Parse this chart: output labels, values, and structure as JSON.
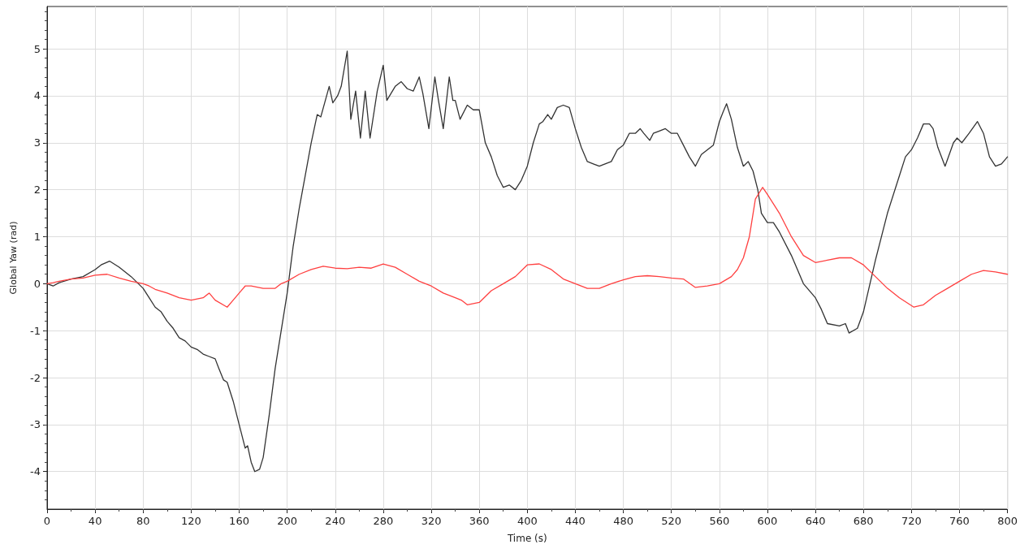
{
  "chart_data": {
    "type": "line",
    "xlabel": "Time (s)",
    "ylabel": "Global Yaw (rad)",
    "xlim": [
      0,
      800
    ],
    "xticks": [
      0,
      40,
      80,
      120,
      160,
      200,
      240,
      280,
      320,
      360,
      400,
      440,
      480,
      520,
      560,
      600,
      640,
      680,
      720,
      760,
      800
    ],
    "ylim": [
      -4.8,
      5.9
    ],
    "yticks": [
      -4,
      -3,
      -2,
      -1,
      0,
      1,
      2,
      3,
      4,
      5
    ],
    "grid": true,
    "marker": "none",
    "line_style": "solid",
    "series": [
      {
        "color": "#333333",
        "x": [
          0,
          5,
          10,
          20,
          30,
          40,
          45,
          52,
          60,
          70,
          80,
          85,
          90,
          95,
          100,
          105,
          110,
          115,
          120,
          125,
          130,
          135,
          140,
          143,
          147,
          150,
          155,
          160,
          165,
          167,
          170,
          173,
          177,
          180,
          185,
          190,
          195,
          200,
          205,
          210,
          215,
          220,
          225,
          228,
          235,
          238,
          242,
          245,
          250,
          253,
          257,
          261,
          265,
          269,
          275,
          280,
          283,
          290,
          295,
          300,
          305,
          310,
          313,
          318,
          323,
          326,
          330,
          335,
          338,
          340,
          344,
          350,
          355,
          360,
          365,
          370,
          375,
          380,
          385,
          390,
          395,
          400,
          405,
          410,
          413,
          417,
          420,
          425,
          430,
          435,
          440,
          445,
          450,
          455,
          460,
          470,
          475,
          480,
          485,
          490,
          494,
          497,
          502,
          505,
          510,
          515,
          520,
          525,
          530,
          535,
          540,
          545,
          550,
          555,
          560,
          563,
          566,
          570,
          575,
          580,
          584,
          588,
          592,
          595,
          600,
          605,
          610,
          620,
          630,
          640,
          645,
          650,
          660,
          665,
          668,
          675,
          680,
          690,
          700,
          710,
          715,
          720,
          725,
          730,
          735,
          738,
          742,
          748,
          755,
          758,
          762,
          768,
          775,
          780,
          785,
          790,
          795,
          800
        ],
        "values": [
          0,
          -0.05,
          0.02,
          0.1,
          0.15,
          0.3,
          0.4,
          0.48,
          0.35,
          0.15,
          -0.1,
          -0.3,
          -0.5,
          -0.6,
          -0.8,
          -0.95,
          -1.15,
          -1.22,
          -1.35,
          -1.4,
          -1.5,
          -1.55,
          -1.6,
          -1.8,
          -2.05,
          -2.1,
          -2.5,
          -3.0,
          -3.5,
          -3.45,
          -3.8,
          -4.0,
          -3.95,
          -3.7,
          -2.8,
          -1.8,
          -1.0,
          -0.2,
          0.8,
          1.6,
          2.3,
          3.0,
          3.6,
          3.55,
          4.2,
          3.85,
          4.0,
          4.2,
          4.95,
          3.5,
          4.1,
          3.1,
          4.1,
          3.1,
          4.1,
          4.65,
          3.9,
          4.2,
          4.3,
          4.15,
          4.1,
          4.4,
          4.05,
          3.3,
          4.4,
          3.9,
          3.3,
          4.4,
          3.9,
          3.9,
          3.5,
          3.8,
          3.7,
          3.7,
          3.0,
          2.7,
          2.3,
          2.05,
          2.1,
          2.0,
          2.2,
          2.5,
          3.0,
          3.4,
          3.45,
          3.6,
          3.5,
          3.75,
          3.8,
          3.75,
          3.3,
          2.9,
          2.6,
          2.55,
          2.5,
          2.6,
          2.85,
          2.95,
          3.2,
          3.2,
          3.3,
          3.2,
          3.05,
          3.2,
          3.25,
          3.3,
          3.2,
          3.2,
          2.95,
          2.7,
          2.5,
          2.75,
          2.85,
          2.95,
          3.45,
          3.65,
          3.83,
          3.5,
          2.9,
          2.5,
          2.6,
          2.4,
          2.0,
          1.5,
          1.3,
          1.3,
          1.1,
          0.6,
          0.0,
          -0.3,
          -0.55,
          -0.85,
          -0.9,
          -0.85,
          -1.05,
          -0.95,
          -0.6,
          0.5,
          1.5,
          2.3,
          2.7,
          2.85,
          3.1,
          3.4,
          3.4,
          3.3,
          2.9,
          2.5,
          3.0,
          3.1,
          3.0,
          3.2,
          3.45,
          3.2,
          2.7,
          2.5,
          2.55,
          2.7
        ]
      },
      {
        "color": "#ff4040",
        "x": [
          0,
          5,
          10,
          20,
          30,
          40,
          50,
          60,
          70,
          80,
          85,
          90,
          100,
          110,
          120,
          130,
          135,
          140,
          150,
          155,
          160,
          165,
          170,
          180,
          190,
          195,
          200,
          210,
          220,
          230,
          240,
          250,
          260,
          270,
          280,
          290,
          300,
          310,
          320,
          330,
          340,
          345,
          350,
          360,
          370,
          380,
          390,
          400,
          410,
          420,
          430,
          440,
          450,
          460,
          470,
          480,
          490,
          500,
          510,
          520,
          530,
          540,
          550,
          560,
          570,
          575,
          580,
          585,
          590,
          596,
          600,
          610,
          620,
          630,
          640,
          650,
          660,
          670,
          680,
          690,
          700,
          710,
          722,
          730,
          740,
          750,
          760,
          770,
          780,
          790,
          800
        ],
        "values": [
          0,
          0.02,
          0.05,
          0.1,
          0.12,
          0.18,
          0.2,
          0.12,
          0.05,
          0.0,
          -0.05,
          -0.12,
          -0.2,
          -0.3,
          -0.35,
          -0.3,
          -0.2,
          -0.35,
          -0.5,
          -0.35,
          -0.2,
          -0.05,
          -0.05,
          -0.1,
          -0.1,
          0.0,
          0.05,
          0.2,
          0.3,
          0.37,
          0.33,
          0.32,
          0.35,
          0.33,
          0.42,
          0.35,
          0.2,
          0.05,
          -0.05,
          -0.2,
          -0.3,
          -0.35,
          -0.45,
          -0.4,
          -0.15,
          0.0,
          0.15,
          0.4,
          0.42,
          0.3,
          0.1,
          0.0,
          -0.1,
          -0.1,
          0.0,
          0.08,
          0.15,
          0.17,
          0.15,
          0.12,
          0.1,
          -0.08,
          -0.05,
          0.0,
          0.15,
          0.3,
          0.55,
          1.0,
          1.8,
          2.05,
          1.9,
          1.5,
          1.0,
          0.6,
          0.45,
          0.5,
          0.55,
          0.55,
          0.4,
          0.15,
          -0.1,
          -0.3,
          -0.5,
          -0.45,
          -0.25,
          -0.1,
          0.05,
          0.2,
          0.28,
          0.25,
          0.2
        ]
      }
    ]
  }
}
